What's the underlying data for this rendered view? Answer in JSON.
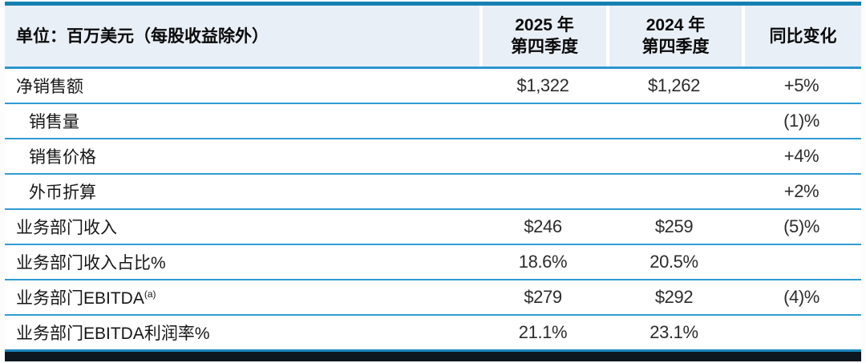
{
  "table": {
    "unit_header": "单位：百万美元（每股收益除外）",
    "columns": [
      {
        "line1": "2025 年",
        "line2": "第四季度"
      },
      {
        "line1": "2024 年",
        "line2": "第四季度"
      },
      {
        "line1": "同比变化",
        "line2": ""
      }
    ],
    "rows": [
      {
        "label": "净销售额",
        "sup": "",
        "indent": false,
        "q4_2025": "$1,322",
        "q4_2024": "$1,262",
        "yoy": "+5%"
      },
      {
        "label": "销售量",
        "sup": "",
        "indent": true,
        "q4_2025": "",
        "q4_2024": "",
        "yoy": "(1)%"
      },
      {
        "label": "销售价格",
        "sup": "",
        "indent": true,
        "q4_2025": "",
        "q4_2024": "",
        "yoy": "+4%"
      },
      {
        "label": "外币折算",
        "sup": "",
        "indent": true,
        "q4_2025": "",
        "q4_2024": "",
        "yoy": "+2%"
      },
      {
        "label": "业务部门收入",
        "sup": "",
        "indent": false,
        "q4_2025": "$246",
        "q4_2024": "$259",
        "yoy": "(5)%"
      },
      {
        "label": "业务部门收入占比%",
        "sup": "",
        "indent": false,
        "q4_2025": "18.6%",
        "q4_2024": "20.5%",
        "yoy": ""
      },
      {
        "label": "业务部门EBITDA",
        "sup": "(a)",
        "indent": false,
        "q4_2025": "$279",
        "q4_2024": "$292",
        "yoy": "(4)%"
      },
      {
        "label": "业务部门EBITDA利润率%",
        "sup": "",
        "indent": false,
        "q4_2025": "21.1%",
        "q4_2024": "23.1%",
        "yoy": ""
      }
    ]
  },
  "colors": {
    "accent_blue": "#2f9cd4",
    "top_border_blue": "#1480b2",
    "header_bg": "#e9eff7",
    "footer_bar": "#0c1722"
  }
}
